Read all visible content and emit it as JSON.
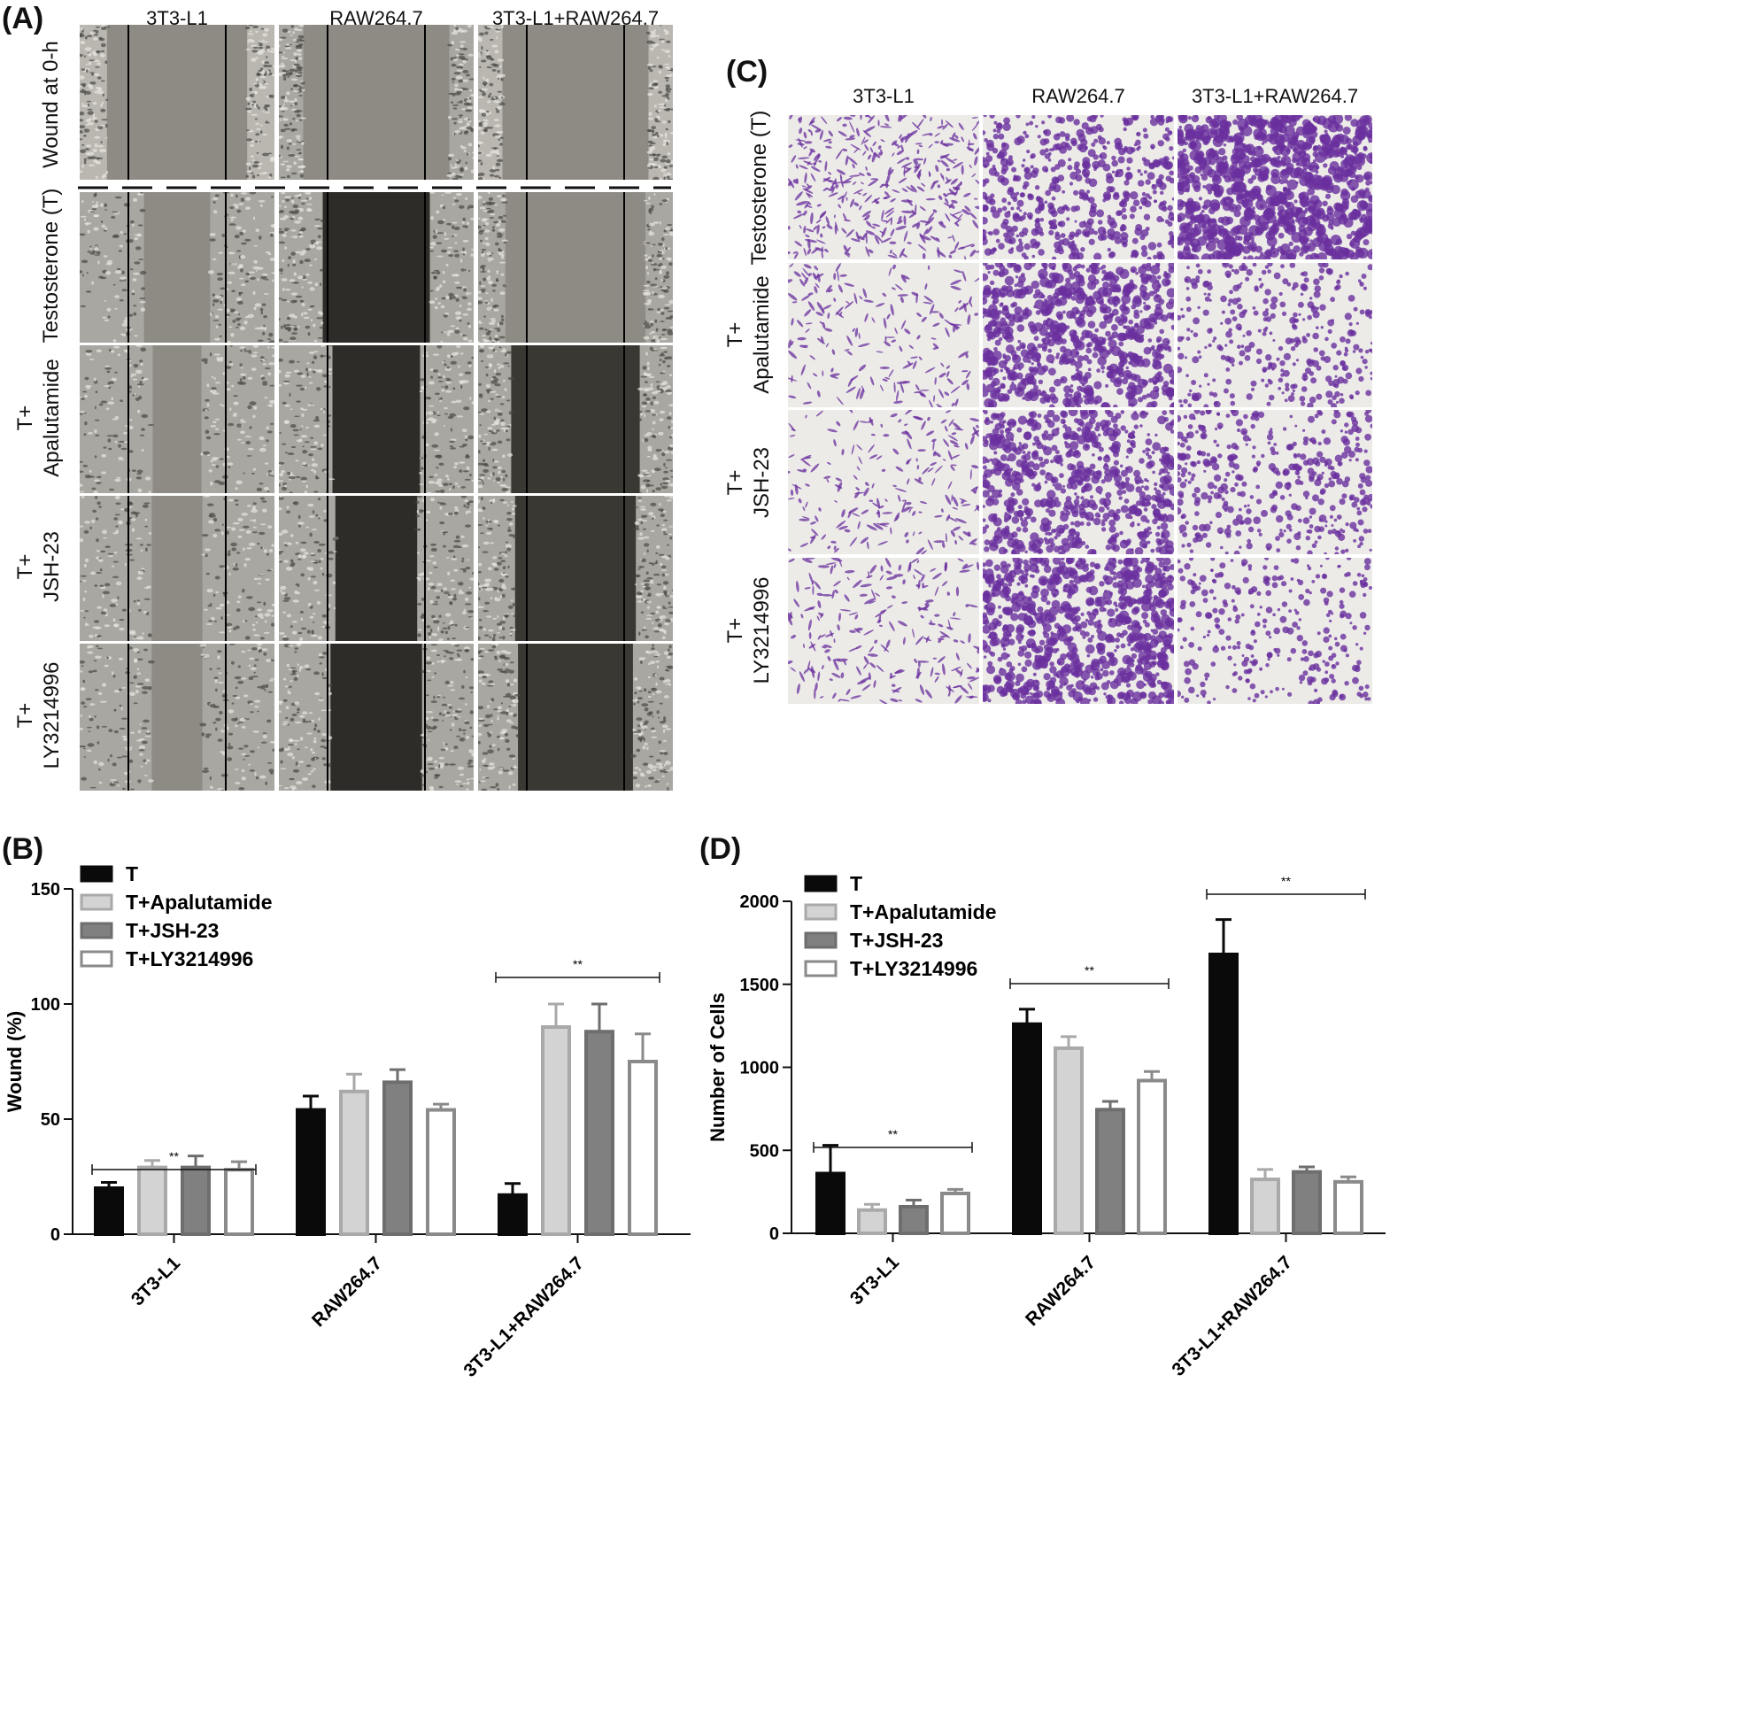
{
  "panels": {
    "a": {
      "label": "(A)",
      "columns": [
        "3T3-L1",
        "RAW264.7",
        "3T3-L1+RAW264.7"
      ],
      "rows": [
        "Wound at 0-h",
        "Testosterone (T)",
        "T+\nApalutamide",
        "T+\nJSH-23",
        "T+\nLY3214996"
      ]
    },
    "c": {
      "label": "(C)",
      "columns": [
        "3T3-L1",
        "RAW264.7",
        "3T3-L1+RAW264.7"
      ],
      "rows": [
        "Testosterone (T)",
        "T+\nApalutamide",
        "T+\nJSH-23",
        "T+\nLY3214996"
      ]
    },
    "b": {
      "label": "(B)"
    },
    "d": {
      "label": "(D)"
    }
  },
  "colors": {
    "T": "#0a0a0a",
    "T+Apalutamide": "#d3d3d3",
    "T+JSH-23": "#808080",
    "T+LY3214996": "#ffffff",
    "stain": "#6a2f9e",
    "wound_bg": "#8c8a84"
  },
  "micrograph_density": {
    "scratch_gap_fraction": {
      "3T3-L1": [
        0.72,
        0.34,
        0.25,
        0.26,
        0.26
      ],
      "RAW264.7": [
        0.75,
        0.55,
        0.45,
        0.42,
        0.47
      ],
      "3T3-L1+RAW264.7": [
        0.75,
        0.72,
        0.66,
        0.62,
        0.59
      ]
    },
    "stained_coverage": {
      "3T3-L1": [
        0.3,
        0.08,
        0.09,
        0.12
      ],
      "RAW264.7": [
        0.45,
        0.7,
        0.6,
        0.72
      ],
      "3T3-L1+RAW264.7": [
        0.9,
        0.25,
        0.32,
        0.2
      ]
    }
  },
  "chart_data": [
    {
      "type": "bar",
      "categories": [
        "3T3-L1",
        "RAW264.7",
        "3T3-L1+RAW264.7"
      ],
      "series": [
        {
          "name": "T",
          "values": [
            20,
            54,
            17
          ],
          "errors": [
            2.5,
            6,
            5
          ]
        },
        {
          "name": "T+Apalutamide",
          "values": [
            29,
            62,
            90
          ],
          "errors": [
            3,
            7.5,
            10
          ]
        },
        {
          "name": "T+JSH-23",
          "values": [
            29,
            66,
            88
          ],
          "errors": [
            5,
            5.5,
            12
          ]
        },
        {
          "name": "T+LY3214996",
          "values": [
            28,
            54,
            75
          ],
          "errors": [
            3.5,
            2.5,
            12
          ]
        }
      ],
      "ylabel": "Wound (%)",
      "ylim": [
        0,
        150
      ],
      "yticks": [
        0,
        50,
        100,
        150
      ],
      "legend_position": "top-left",
      "significance": [
        {
          "category": "3T3-L1",
          "label": "**"
        },
        {
          "category": "3T3-L1+RAW264.7",
          "label": "**"
        }
      ]
    },
    {
      "type": "bar",
      "categories": [
        "3T3-L1",
        "RAW264.7",
        "3T3-L1+RAW264.7"
      ],
      "series": [
        {
          "name": "T",
          "values": [
            360,
            1260,
            1680
          ],
          "errors": [
            170,
            90,
            210
          ]
        },
        {
          "name": "T+Apalutamide",
          "values": [
            140,
            1115,
            325
          ],
          "errors": [
            35,
            70,
            60
          ]
        },
        {
          "name": "T+JSH-23",
          "values": [
            160,
            745,
            370
          ],
          "errors": [
            40,
            50,
            30
          ]
        },
        {
          "name": "T+LY3214996",
          "values": [
            240,
            920,
            310
          ],
          "errors": [
            25,
            55,
            30
          ]
        }
      ],
      "ylabel": "Number of Cells",
      "ylim": [
        0,
        2000
      ],
      "yticks": [
        0,
        500,
        1000,
        1500,
        2000
      ],
      "legend_position": "top-left",
      "significance": [
        {
          "category": "3T3-L1",
          "label": "**"
        },
        {
          "category": "RAW264.7",
          "label": "**"
        },
        {
          "category": "3T3-L1+RAW264.7",
          "label": "**"
        }
      ]
    }
  ]
}
